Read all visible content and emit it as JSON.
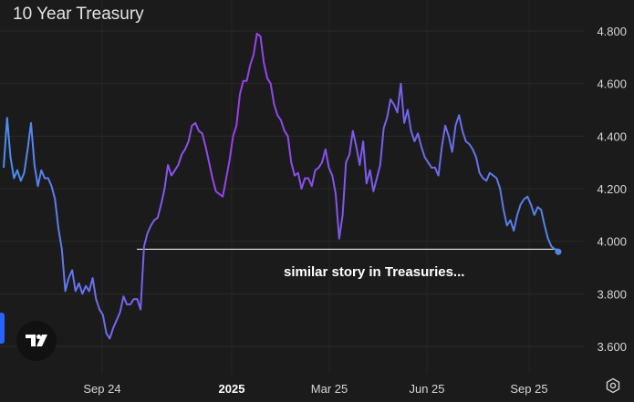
{
  "chart_data": {
    "type": "line",
    "title": "10 Year Treasury",
    "ylim": [
      3.6,
      4.8
    ],
    "y_ticks": [
      "4.800",
      "4.600",
      "4.400",
      "4.200",
      "4.000",
      "3.800",
      "3.600"
    ],
    "x_ticks": [
      {
        "label": "Sep 24",
        "bold": false
      },
      {
        "label": "2025",
        "bold": true
      },
      {
        "label": "Mar 25",
        "bold": false
      },
      {
        "label": "Jun 25",
        "bold": false
      },
      {
        "label": "Sep 25",
        "bold": false
      }
    ],
    "grid": true,
    "colors": {
      "start": "#4c8ef0",
      "mid": "#9b3fef",
      "end": "#4f86ea"
    },
    "reference_line": {
      "value": 3.97
    },
    "annotation": "similar story in Treasuries...",
    "series": [
      {
        "values": [
          4.28,
          4.47,
          4.32,
          4.24,
          4.27,
          4.23,
          4.26,
          4.35,
          4.45,
          4.29,
          4.21,
          4.27,
          4.24,
          4.24,
          4.21,
          4.16,
          4.05,
          3.97,
          3.81,
          3.86,
          3.89,
          3.81,
          3.84,
          3.8,
          3.83,
          3.81,
          3.86,
          3.78,
          3.74,
          3.72,
          3.65,
          3.63,
          3.67,
          3.7,
          3.73,
          3.79,
          3.76,
          3.76,
          3.78,
          3.78,
          3.74,
          3.98,
          4.03,
          4.06,
          4.08,
          4.09,
          4.14,
          4.2,
          4.29,
          4.25,
          4.27,
          4.29,
          4.33,
          4.35,
          4.38,
          4.44,
          4.45,
          4.42,
          4.41,
          4.36,
          4.3,
          4.24,
          4.19,
          4.18,
          4.17,
          4.24,
          4.31,
          4.4,
          4.44,
          4.56,
          4.61,
          4.61,
          4.67,
          4.71,
          4.79,
          4.78,
          4.68,
          4.62,
          4.6,
          4.52,
          4.48,
          4.46,
          4.42,
          4.4,
          4.3,
          4.25,
          4.26,
          4.2,
          4.24,
          4.24,
          4.21,
          4.27,
          4.28,
          4.3,
          4.35,
          4.28,
          4.25,
          4.18,
          4.01,
          4.1,
          4.3,
          4.33,
          4.42,
          4.36,
          4.29,
          4.38,
          4.22,
          4.27,
          4.19,
          4.24,
          4.29,
          4.43,
          4.47,
          4.54,
          4.52,
          4.49,
          4.6,
          4.45,
          4.5,
          4.42,
          4.38,
          4.41,
          4.36,
          4.32,
          4.3,
          4.28,
          4.28,
          4.25,
          4.36,
          4.44,
          4.4,
          4.34,
          4.44,
          4.48,
          4.42,
          4.38,
          4.37,
          4.35,
          4.32,
          4.26,
          4.24,
          4.23,
          4.26,
          4.25,
          4.24,
          4.2,
          4.12,
          4.06,
          4.08,
          4.04,
          4.1,
          4.14,
          4.16,
          4.17,
          4.14,
          4.1,
          4.13,
          4.12,
          4.06,
          4.01,
          3.98,
          3.97,
          3.96
        ]
      }
    ]
  },
  "icons": {
    "logo": "tradingview-logo",
    "settings": "gear-icon"
  }
}
